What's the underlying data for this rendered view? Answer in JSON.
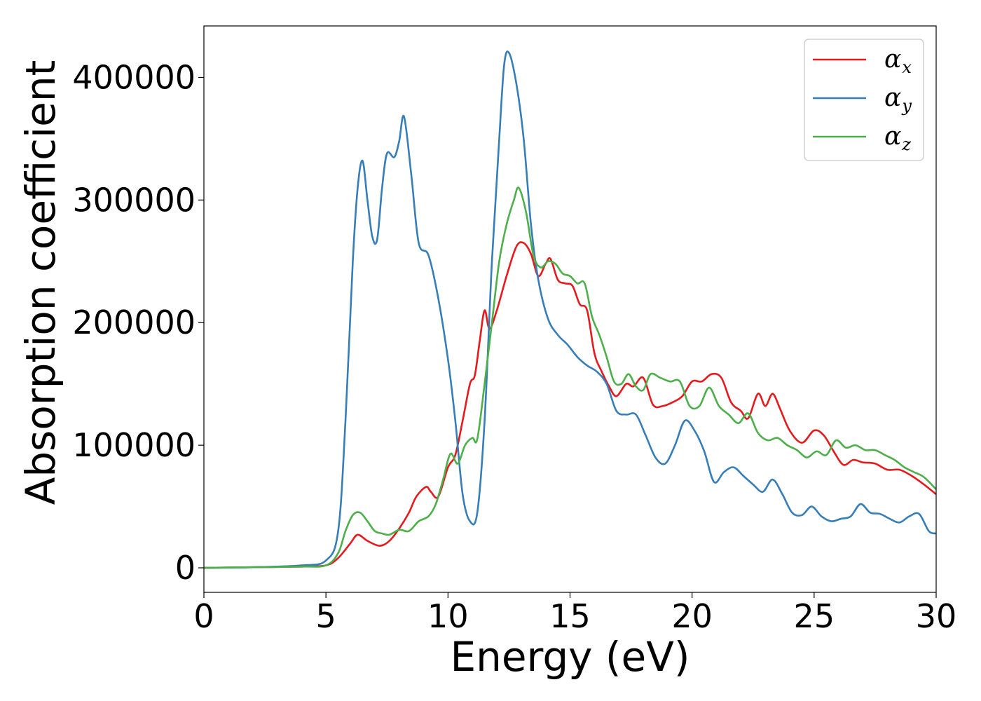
{
  "chart_data": {
    "type": "line",
    "xlabel": "Energy (eV)",
    "ylabel": "Absorption coefficient",
    "xlim": [
      0,
      30
    ],
    "ylim": [
      -20000,
      442000
    ],
    "xticks": [
      0,
      5,
      10,
      15,
      20,
      25,
      30
    ],
    "yticks": [
      0,
      100000,
      200000,
      300000,
      400000
    ],
    "grid": false,
    "legend_position": "top-right",
    "series": [
      {
        "name": "α",
        "subscript": "x",
        "color": "#e41a1c",
        "points": [
          [
            0,
            0
          ],
          [
            2,
            500
          ],
          [
            4,
            1000
          ],
          [
            5,
            2000
          ],
          [
            5.5,
            8000
          ],
          [
            6,
            20000
          ],
          [
            6.3,
            27000
          ],
          [
            6.7,
            22000
          ],
          [
            7.2,
            18000
          ],
          [
            7.6,
            22000
          ],
          [
            8,
            32000
          ],
          [
            8.4,
            45000
          ],
          [
            8.7,
            58000
          ],
          [
            9.1,
            66000
          ],
          [
            9.3,
            62000
          ],
          [
            9.6,
            58000
          ],
          [
            10,
            82000
          ],
          [
            10.3,
            92000
          ],
          [
            10.6,
            120000
          ],
          [
            10.9,
            150000
          ],
          [
            11.1,
            157000
          ],
          [
            11.3,
            185000
          ],
          [
            11.5,
            210000
          ],
          [
            11.7,
            195000
          ],
          [
            12,
            210000
          ],
          [
            12.4,
            238000
          ],
          [
            12.8,
            262000
          ],
          [
            13.1,
            265000
          ],
          [
            13.4,
            256000
          ],
          [
            13.7,
            238000
          ],
          [
            14,
            248000
          ],
          [
            14.2,
            252000
          ],
          [
            14.5,
            235000
          ],
          [
            14.8,
            232000
          ],
          [
            15.1,
            230000
          ],
          [
            15.4,
            215000
          ],
          [
            15.7,
            210000
          ],
          [
            16,
            175000
          ],
          [
            16.3,
            160000
          ],
          [
            16.6,
            148000
          ],
          [
            16.9,
            140000
          ],
          [
            17.3,
            150000
          ],
          [
            17.6,
            148000
          ],
          [
            18,
            155000
          ],
          [
            18.4,
            133000
          ],
          [
            18.8,
            132000
          ],
          [
            19.2,
            135000
          ],
          [
            19.6,
            140000
          ],
          [
            20,
            152000
          ],
          [
            20.4,
            152000
          ],
          [
            20.8,
            158000
          ],
          [
            21.2,
            155000
          ],
          [
            21.6,
            135000
          ],
          [
            22,
            128000
          ],
          [
            22.3,
            122000
          ],
          [
            22.7,
            142000
          ],
          [
            23,
            132000
          ],
          [
            23.3,
            142000
          ],
          [
            23.6,
            130000
          ],
          [
            24,
            112000
          ],
          [
            24.5,
            102000
          ],
          [
            25,
            112000
          ],
          [
            25.4,
            108000
          ],
          [
            25.8,
            95000
          ],
          [
            26.2,
            84000
          ],
          [
            26.6,
            88000
          ],
          [
            27,
            86000
          ],
          [
            27.5,
            85000
          ],
          [
            28,
            80000
          ],
          [
            28.5,
            80000
          ],
          [
            29,
            75000
          ],
          [
            29.5,
            68000
          ],
          [
            30,
            60000
          ]
        ]
      },
      {
        "name": "α",
        "subscript": "y",
        "color": "#377eb8",
        "points": [
          [
            0,
            0
          ],
          [
            2,
            500
          ],
          [
            4,
            2000
          ],
          [
            5,
            6000
          ],
          [
            5.5,
            30000
          ],
          [
            5.8,
            120000
          ],
          [
            6.1,
            250000
          ],
          [
            6.3,
            310000
          ],
          [
            6.5,
            332000
          ],
          [
            6.7,
            300000
          ],
          [
            6.9,
            270000
          ],
          [
            7.1,
            268000
          ],
          [
            7.3,
            310000
          ],
          [
            7.5,
            338000
          ],
          [
            7.8,
            335000
          ],
          [
            8,
            348000
          ],
          [
            8.2,
            368000
          ],
          [
            8.5,
            320000
          ],
          [
            8.8,
            265000
          ],
          [
            9.2,
            255000
          ],
          [
            9.6,
            220000
          ],
          [
            10,
            170000
          ],
          [
            10.3,
            120000
          ],
          [
            10.6,
            60000
          ],
          [
            10.9,
            38000
          ],
          [
            11.2,
            45000
          ],
          [
            11.5,
            120000
          ],
          [
            11.8,
            250000
          ],
          [
            12.1,
            350000
          ],
          [
            12.3,
            410000
          ],
          [
            12.5,
            420000
          ],
          [
            12.8,
            395000
          ],
          [
            13.1,
            350000
          ],
          [
            13.4,
            280000
          ],
          [
            13.7,
            235000
          ],
          [
            14.1,
            203000
          ],
          [
            14.5,
            190000
          ],
          [
            14.9,
            182000
          ],
          [
            15.3,
            172000
          ],
          [
            15.7,
            165000
          ],
          [
            16.1,
            160000
          ],
          [
            16.5,
            150000
          ],
          [
            16.9,
            128000
          ],
          [
            17.3,
            125000
          ],
          [
            17.7,
            125000
          ],
          [
            18.1,
            108000
          ],
          [
            18.5,
            90000
          ],
          [
            18.9,
            85000
          ],
          [
            19.3,
            100000
          ],
          [
            19.7,
            120000
          ],
          [
            20.1,
            112000
          ],
          [
            20.5,
            95000
          ],
          [
            20.9,
            70000
          ],
          [
            21.3,
            78000
          ],
          [
            21.7,
            82000
          ],
          [
            22.1,
            75000
          ],
          [
            22.5,
            68000
          ],
          [
            22.9,
            62000
          ],
          [
            23.3,
            72000
          ],
          [
            23.7,
            60000
          ],
          [
            24.1,
            45000
          ],
          [
            24.5,
            43000
          ],
          [
            24.9,
            50000
          ],
          [
            25.3,
            42000
          ],
          [
            25.7,
            38000
          ],
          [
            26.1,
            40000
          ],
          [
            26.5,
            42000
          ],
          [
            26.9,
            52000
          ],
          [
            27.3,
            45000
          ],
          [
            27.7,
            44000
          ],
          [
            28.1,
            40000
          ],
          [
            28.5,
            37000
          ],
          [
            28.9,
            42000
          ],
          [
            29.3,
            44000
          ],
          [
            29.7,
            30000
          ],
          [
            30,
            28000
          ]
        ]
      },
      {
        "name": "α",
        "subscript": "z",
        "color": "#4daf4a",
        "points": [
          [
            0,
            0
          ],
          [
            2,
            500
          ],
          [
            4,
            1000
          ],
          [
            5,
            2000
          ],
          [
            5.5,
            12000
          ],
          [
            5.8,
            30000
          ],
          [
            6.1,
            43000
          ],
          [
            6.4,
            45000
          ],
          [
            6.7,
            38000
          ],
          [
            7,
            30000
          ],
          [
            7.3,
            28000
          ],
          [
            7.6,
            27000
          ],
          [
            8,
            31000
          ],
          [
            8.4,
            30000
          ],
          [
            8.8,
            38000
          ],
          [
            9.2,
            42000
          ],
          [
            9.5,
            52000
          ],
          [
            9.8,
            72000
          ],
          [
            10.1,
            93000
          ],
          [
            10.4,
            85000
          ],
          [
            10.7,
            100000
          ],
          [
            11,
            106000
          ],
          [
            11.2,
            105000
          ],
          [
            11.5,
            150000
          ],
          [
            11.8,
            200000
          ],
          [
            12.1,
            250000
          ],
          [
            12.4,
            280000
          ],
          [
            12.7,
            300000
          ],
          [
            12.9,
            310000
          ],
          [
            13.2,
            290000
          ],
          [
            13.5,
            255000
          ],
          [
            13.8,
            245000
          ],
          [
            14.1,
            250000
          ],
          [
            14.4,
            248000
          ],
          [
            14.7,
            240000
          ],
          [
            15,
            238000
          ],
          [
            15.3,
            232000
          ],
          [
            15.6,
            232000
          ],
          [
            15.9,
            205000
          ],
          [
            16.2,
            190000
          ],
          [
            16.5,
            172000
          ],
          [
            16.8,
            152000
          ],
          [
            17.1,
            150000
          ],
          [
            17.4,
            158000
          ],
          [
            17.7,
            148000
          ],
          [
            18,
            145000
          ],
          [
            18.3,
            158000
          ],
          [
            18.7,
            155000
          ],
          [
            19.1,
            152000
          ],
          [
            19.5,
            152000
          ],
          [
            19.9,
            132000
          ],
          [
            20.3,
            132000
          ],
          [
            20.7,
            147000
          ],
          [
            21.1,
            132000
          ],
          [
            21.5,
            125000
          ],
          [
            21.9,
            118000
          ],
          [
            22.3,
            126000
          ],
          [
            22.7,
            110000
          ],
          [
            23.1,
            104000
          ],
          [
            23.5,
            106000
          ],
          [
            23.9,
            100000
          ],
          [
            24.3,
            96000
          ],
          [
            24.7,
            90000
          ],
          [
            25.1,
            95000
          ],
          [
            25.5,
            92000
          ],
          [
            25.9,
            104000
          ],
          [
            26.3,
            98000
          ],
          [
            26.7,
            100000
          ],
          [
            27.1,
            96000
          ],
          [
            27.5,
            96000
          ],
          [
            27.9,
            92000
          ],
          [
            28.3,
            88000
          ],
          [
            28.7,
            82000
          ],
          [
            29.1,
            78000
          ],
          [
            29.5,
            74000
          ],
          [
            30,
            64000
          ]
        ]
      }
    ]
  }
}
